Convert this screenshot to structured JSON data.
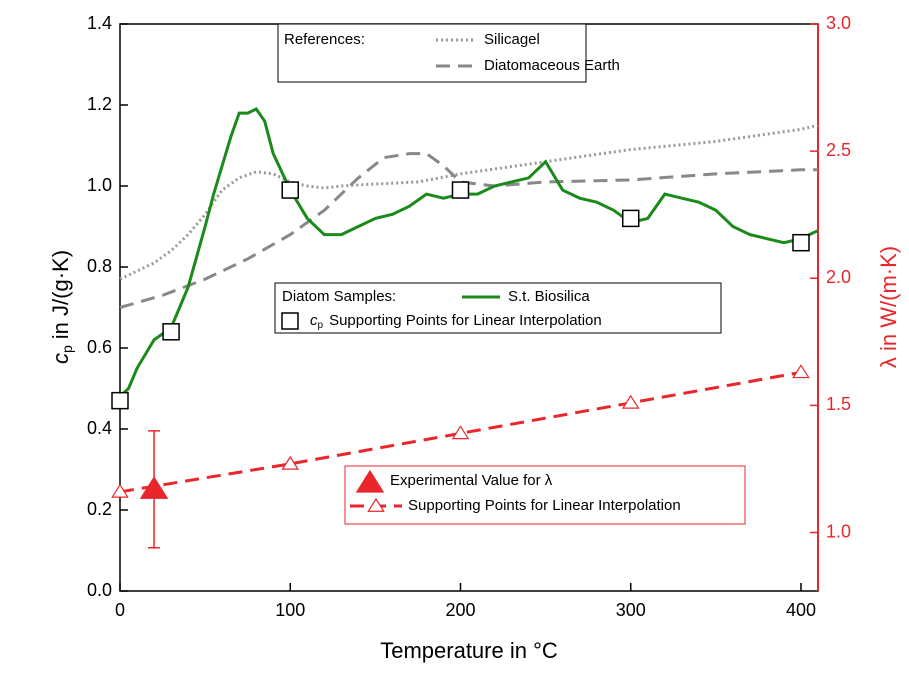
{
  "chart_data": {
    "type": "line",
    "xlabel": "Temperature in °C",
    "ylabel": [
      "c",
      "p",
      "in J/(g·K)"
    ],
    "y2label": "λ in W/(m·K)",
    "xlim": [
      0,
      410
    ],
    "xticks": [
      0,
      100,
      200,
      300,
      400
    ],
    "ylim": [
      0,
      1.4
    ],
    "yticks": [
      {
        "value": 0,
        "label": "0.0"
      },
      {
        "value": 0.2,
        "label": "0.2"
      },
      {
        "value": 0.4,
        "label": "0.4"
      },
      {
        "value": 0.6,
        "label": "0.6"
      },
      {
        "value": 0.8,
        "label": "0.8"
      },
      {
        "value": 1,
        "label": "1.0"
      },
      {
        "value": 1.2,
        "label": "1.2"
      },
      {
        "value": 1.4,
        "label": "1.4"
      }
    ],
    "y2lim": [
      0.77,
      3.0
    ],
    "y2ticks": [
      {
        "value": 1,
        "label": "1.0"
      },
      1.5,
      {
        "value": 2,
        "label": "2.0"
      },
      2.5,
      {
        "value": 3,
        "label": "3.0"
      }
    ],
    "y2color": "#e8262b",
    "legend_titles": [
      "References:",
      "Diatom Samples:"
    ],
    "series": [
      {
        "name": "Silicagel",
        "color": "#999999",
        "style": "dotted",
        "axis": "y",
        "x": [
          0,
          10,
          20,
          30,
          40,
          50,
          60,
          70,
          80,
          90,
          100,
          110,
          120,
          130,
          150,
          175,
          200,
          250,
          300,
          350,
          400,
          410
        ],
        "values": [
          0.77,
          0.79,
          0.81,
          0.84,
          0.88,
          0.93,
          0.99,
          1.02,
          1.035,
          1.03,
          1.01,
          1.0,
          0.995,
          1.0,
          1.005,
          1.01,
          1.03,
          1.06,
          1.09,
          1.11,
          1.14,
          1.15
        ]
      },
      {
        "name": "Diatomaceous Earth",
        "color": "#888888",
        "style": "dashed",
        "axis": "y",
        "x": [
          0,
          25,
          50,
          75,
          100,
          120,
          140,
          155,
          170,
          180,
          190,
          200,
          220,
          250,
          300,
          350,
          400,
          410
        ],
        "values": [
          0.7,
          0.73,
          0.77,
          0.82,
          0.88,
          0.94,
          1.02,
          1.07,
          1.08,
          1.08,
          1.05,
          1.01,
          1.0,
          1.01,
          1.015,
          1.03,
          1.04,
          1.04
        ]
      },
      {
        "name": "S.t. Biosilica",
        "color": "#1a8a1a",
        "style": "solid",
        "axis": "y",
        "x": [
          0,
          5,
          10,
          20,
          30,
          40,
          50,
          55,
          60,
          65,
          70,
          75,
          80,
          85,
          90,
          100,
          110,
          120,
          130,
          140,
          150,
          160,
          170,
          180,
          190,
          200,
          210,
          220,
          230,
          240,
          250,
          260,
          270,
          280,
          290,
          300,
          310,
          320,
          330,
          340,
          350,
          360,
          370,
          380,
          390,
          400,
          410
        ],
        "values": [
          0.48,
          0.5,
          0.55,
          0.62,
          0.65,
          0.75,
          0.9,
          0.98,
          1.05,
          1.12,
          1.18,
          1.18,
          1.19,
          1.16,
          1.08,
          0.99,
          0.92,
          0.88,
          0.88,
          0.9,
          0.92,
          0.93,
          0.95,
          0.98,
          0.97,
          0.98,
          0.98,
          1.0,
          1.01,
          1.02,
          1.06,
          0.99,
          0.97,
          0.96,
          0.94,
          0.91,
          0.92,
          0.98,
          0.97,
          0.96,
          0.94,
          0.9,
          0.88,
          0.87,
          0.86,
          0.87,
          0.89
        ]
      },
      {
        "name": "Supporting Points for Linear Interpolation",
        "symbol": [
          "c",
          "p"
        ],
        "color": "#000000",
        "style": "none",
        "marker": "square-open",
        "axis": "y",
        "x": [
          0,
          30,
          100,
          200,
          300,
          400
        ],
        "values": [
          0.47,
          0.64,
          0.99,
          0.99,
          0.92,
          0.86
        ]
      },
      {
        "name": "Experimental Value for λ",
        "color": "#e8262b",
        "style": "none",
        "marker": "triangle-filled",
        "axis": "y2",
        "x": [
          20
        ],
        "values": [
          1.17
        ],
        "errors": [
          0.23
        ]
      },
      {
        "name": "Supporting Points for Linear Interpolation",
        "color": "#e8262b",
        "style": "dashed",
        "marker": "triangle-open",
        "axis": "y2",
        "x": [
          0,
          100,
          200,
          300,
          400
        ],
        "values": [
          1.16,
          1.27,
          1.39,
          1.51,
          1.63
        ]
      }
    ]
  }
}
